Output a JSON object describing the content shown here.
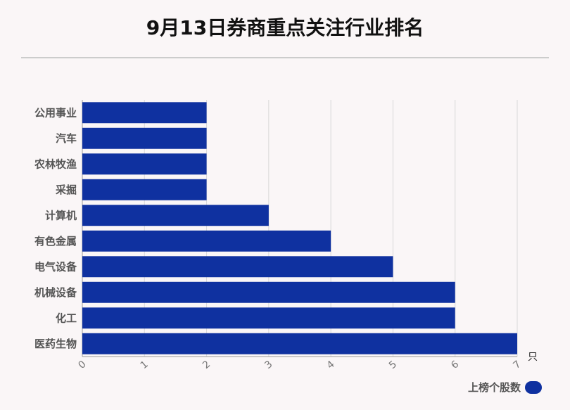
{
  "chart_data": {
    "type": "bar",
    "orientation": "horizontal",
    "title": "9月13日券商重点关注行业排名",
    "categories": [
      "公用事业",
      "汽车",
      "农林牧渔",
      "采掘",
      "计算机",
      "有色金属",
      "电气设备",
      "机械设备",
      "化工",
      "医药生物"
    ],
    "series": [
      {
        "name": "上榜个股数",
        "values": [
          2,
          2,
          2,
          2,
          3,
          4,
          5,
          6,
          6,
          7
        ],
        "color": "#0f31a0"
      }
    ],
    "xlim": [
      0,
      7
    ],
    "xticks": [
      "0",
      "1",
      "2",
      "3",
      "4",
      "5",
      "6",
      "7"
    ],
    "unit": "只",
    "grid": true,
    "legend_position": "bottom-right"
  }
}
